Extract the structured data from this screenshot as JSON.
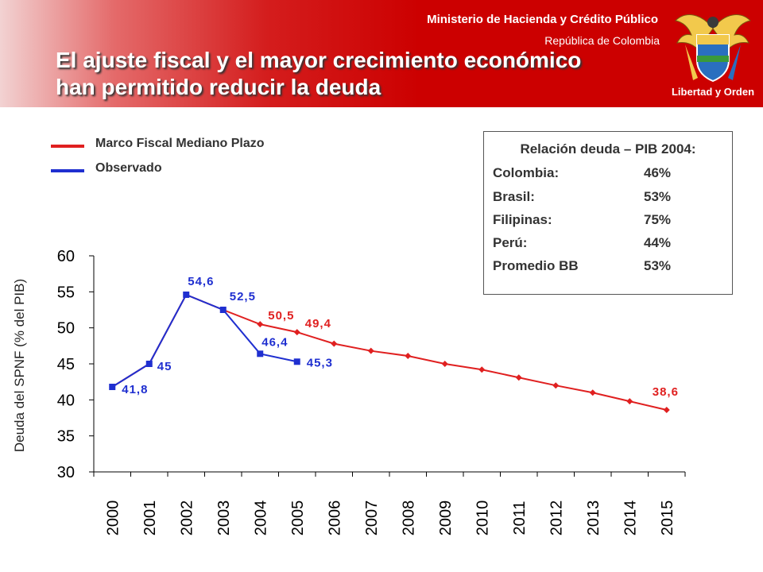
{
  "header": {
    "ministry": "Ministerio de Hacienda y Crédito Público",
    "republic": "República de Colombia",
    "title_line1": "El ajuste fiscal y el mayor crecimiento económico",
    "title_line2": "han permitido reducir la deuda",
    "seal_motto": "Libertad y Orden",
    "seal_icon": "coat-of-arms-icon"
  },
  "colors": {
    "red": "#e02020",
    "blue": "#1f2fd0",
    "banner": "#cc0000"
  },
  "info_box": {
    "title": "Relación deuda – PIB 2004:",
    "rows": [
      {
        "country": "Colombia:",
        "value": "46%"
      },
      {
        "country": "Brasil:",
        "value": "53%"
      },
      {
        "country": "Filipinas:",
        "value": "75%"
      },
      {
        "country": "Perú:",
        "value": "44%"
      },
      {
        "country": "Promedio BB",
        "value": "53%"
      }
    ]
  },
  "chart_data": {
    "type": "line",
    "ylabel": "Deuda del SPNF (% del PIB)",
    "ylim": [
      30,
      60
    ],
    "yticks": [
      30,
      35,
      40,
      45,
      50,
      55,
      60
    ],
    "x": [
      "2000",
      "2001",
      "2002",
      "2003",
      "2004",
      "2005",
      "2006",
      "2007",
      "2008",
      "2009",
      "2010",
      "2011",
      "2012",
      "2013",
      "2014",
      "2015"
    ],
    "legend_position": "top-left",
    "grid": false,
    "series": [
      {
        "name": "Marco Fiscal Mediano Plazo",
        "color": "#e02020",
        "marker": "diamond",
        "x": [
          "2000",
          "2001",
          "2002",
          "2003",
          "2004",
          "2005",
          "2006",
          "2007",
          "2008",
          "2009",
          "2010",
          "2011",
          "2012",
          "2013",
          "2014",
          "2015"
        ],
        "values": [
          41.8,
          45,
          54.6,
          52.5,
          50.5,
          49.4,
          47.8,
          46.8,
          46.1,
          45.0,
          44.2,
          43.1,
          42.0,
          41.0,
          39.8,
          38.6
        ]
      },
      {
        "name": "Observado",
        "color": "#1f2fd0",
        "marker": "square",
        "x": [
          "2000",
          "2001",
          "2002",
          "2003",
          "2004",
          "2005"
        ],
        "values": [
          41.8,
          45,
          54.6,
          52.5,
          46.4,
          45.3
        ]
      }
    ],
    "data_labels": [
      {
        "x": "2000",
        "y": 41.8,
        "text": "41,8",
        "color": "#1f2fd0"
      },
      {
        "x": "2001",
        "y": 45,
        "text": "45",
        "color": "#1f2fd0"
      },
      {
        "x": "2002",
        "y": 54.6,
        "text": "54,6",
        "color": "#1f2fd0"
      },
      {
        "x": "2003",
        "y": 52.5,
        "text": "52,5",
        "color": "#1f2fd0"
      },
      {
        "x": "2004",
        "y": 50.5,
        "text": "50,5",
        "color": "#e02020"
      },
      {
        "x": "2005",
        "y": 49.4,
        "text": "49,4",
        "color": "#e02020"
      },
      {
        "x": "2004",
        "y": 46.4,
        "text": "46,4",
        "color": "#1f2fd0"
      },
      {
        "x": "2005",
        "y": 45.3,
        "text": "45,3",
        "color": "#1f2fd0"
      },
      {
        "x": "2015",
        "y": 38.6,
        "text": "38,6",
        "color": "#e02020"
      }
    ]
  }
}
